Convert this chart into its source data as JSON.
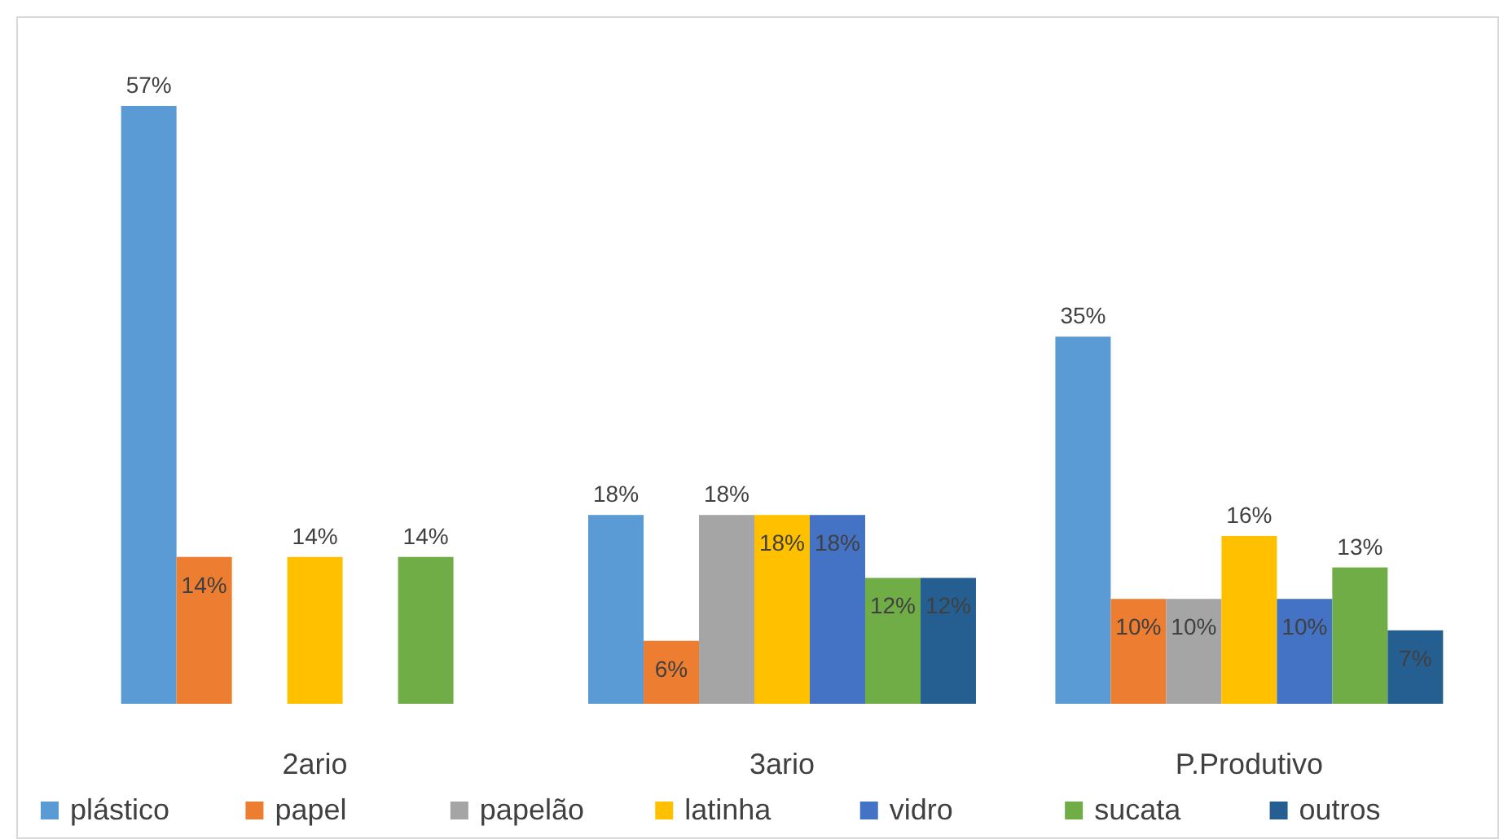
{
  "chart_data": {
    "type": "bar",
    "categories": [
      "2ario",
      "3ario",
      "P.Produtivo"
    ],
    "legend": "bottom",
    "series": [
      {
        "name": "plástico",
        "color": "#5b9bd5",
        "values": [
          57,
          18,
          35
        ],
        "value_labels": [
          "57%",
          "18%",
          "35%"
        ]
      },
      {
        "name": "papel",
        "color": "#ed7d31",
        "values": [
          14,
          6,
          10
        ],
        "value_labels": [
          "14%",
          "6%",
          "10%"
        ]
      },
      {
        "name": "papelão",
        "color": "#a5a5a5",
        "values": [
          0,
          18,
          10
        ],
        "value_labels": [
          null,
          "18%",
          "10%"
        ]
      },
      {
        "name": "latinha",
        "color": "#ffc000",
        "values": [
          14,
          18,
          16
        ],
        "value_labels": [
          "14%",
          "18%",
          "16%"
        ]
      },
      {
        "name": "vidro",
        "color": "#4472c4",
        "values": [
          0,
          18,
          10
        ],
        "value_labels": [
          null,
          "18%",
          "10%"
        ]
      },
      {
        "name": "sucata",
        "color": "#70ad47",
        "values": [
          14,
          12,
          13
        ],
        "value_labels": [
          "14%",
          "12%",
          "13%"
        ]
      },
      {
        "name": "outros",
        "color": "#255e91",
        "values": [
          0,
          12,
          7
        ],
        "value_labels": [
          null,
          "12%",
          "7%"
        ]
      }
    ]
  }
}
